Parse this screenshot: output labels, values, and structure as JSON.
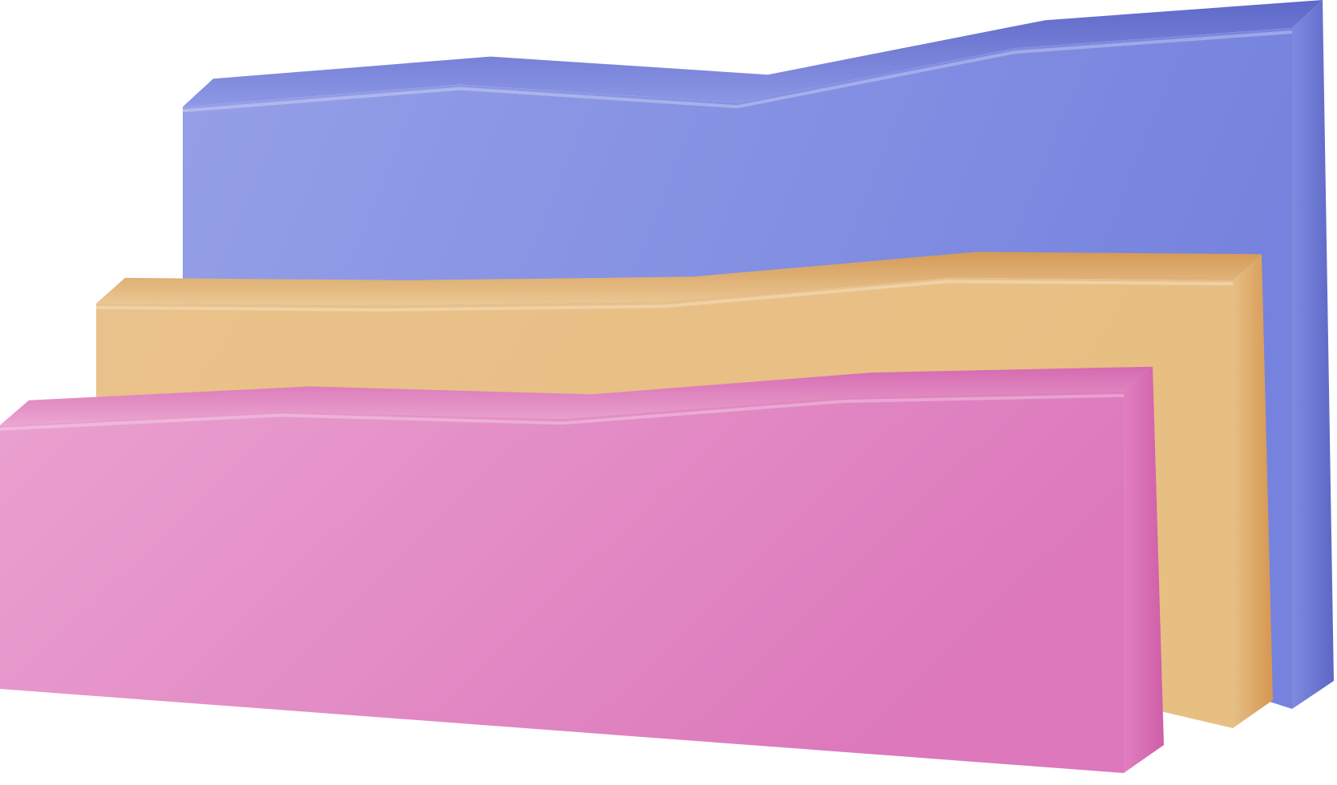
{
  "chart_data": {
    "type": "area",
    "style": "3d-layered",
    "title": "",
    "xlabel": "",
    "ylabel": "",
    "legend": "none",
    "grid": false,
    "x": [
      1,
      2,
      3,
      4,
      5
    ],
    "ylim": [
      0,
      100
    ],
    "series": [
      {
        "id": "back",
        "values": [
          61,
          72,
          63,
          90,
          100
        ],
        "color": "#7b87df",
        "side_color": "#5f6fcc",
        "top_color": "#6a73cf"
      },
      {
        "id": "middle",
        "values": [
          46,
          44,
          47,
          68,
          66
        ],
        "color": "#e8c084",
        "side_color": "#d89c55",
        "top_color": "#d7a15f"
      },
      {
        "id": "front",
        "values": [
          41,
          48,
          44,
          55,
          58
        ],
        "color": "#e393c6",
        "side_color": "#d56eb2",
        "top_color": "#d77db8"
      }
    ]
  }
}
